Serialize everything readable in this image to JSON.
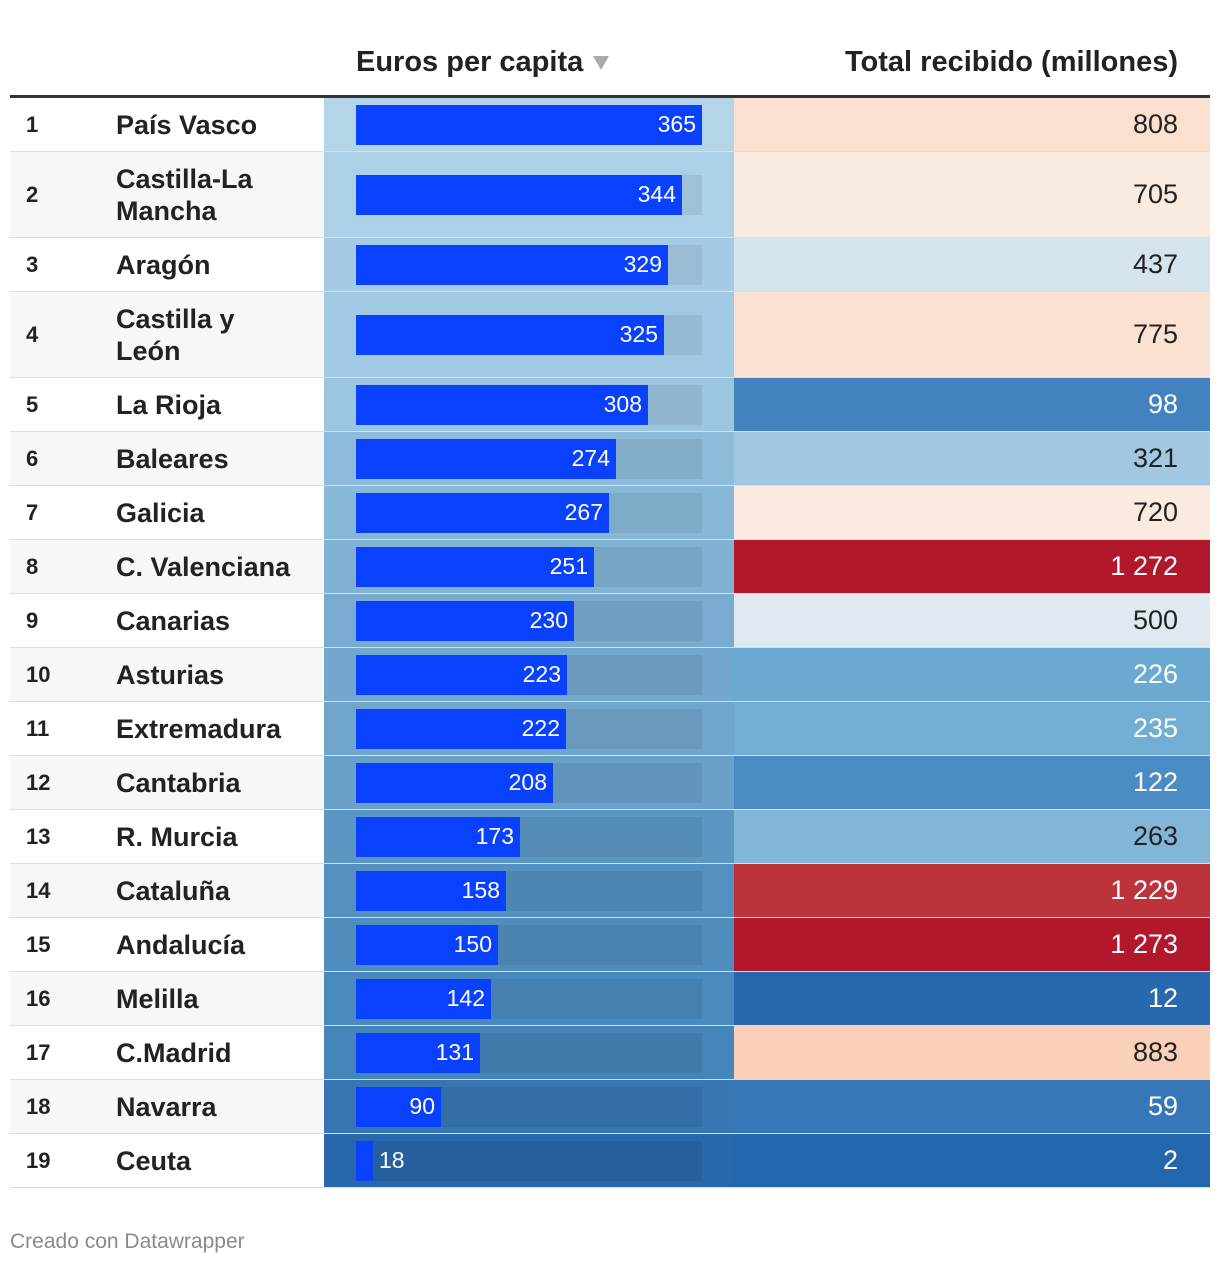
{
  "header": {
    "col_euros": "Euros per capita",
    "col_total": "Total recibido (millones)"
  },
  "footer": "Creado con Datawrapper",
  "scale_max": 365,
  "rows": [
    {
      "rank": "1",
      "name": "País Vasco",
      "euros": 365,
      "euros_label": "365",
      "total": 808,
      "total_label": "808",
      "euros_bg": "#b4d4e8",
      "total_bg": "#fbe0cf",
      "total_color": "#222222"
    },
    {
      "rank": "2",
      "name": "Castilla-La Mancha",
      "euros": 344,
      "euros_label": "344",
      "total": 705,
      "total_label": "705",
      "euros_bg": "#acd0e6",
      "total_bg": "#f9ebdf",
      "total_color": "#222222"
    },
    {
      "rank": "3",
      "name": "Aragón",
      "euros": 329,
      "euros_label": "329",
      "total": 437,
      "total_label": "437",
      "euros_bg": "#a5cbe4",
      "total_bg": "#d3e4ef",
      "total_color": "#222222"
    },
    {
      "rank": "4",
      "name": "Castilla y León",
      "euros": 325,
      "euros_label": "325",
      "total": 775,
      "total_label": "775",
      "euros_bg": "#a2c9e3",
      "total_bg": "#fbe1d2",
      "total_color": "#222222"
    },
    {
      "rank": "5",
      "name": "La Rioja",
      "euros": 308,
      "euros_label": "308",
      "total": 98,
      "total_label": "98",
      "euros_bg": "#9cc5e0",
      "total_bg": "#4283bf",
      "total_color": "#ffffff"
    },
    {
      "rank": "6",
      "name": "Baleares",
      "euros": 274,
      "euros_label": "274",
      "total": 321,
      "total_label": "321",
      "euros_bg": "#8dbbd9",
      "total_bg": "#a1c8e0",
      "total_color": "#222222"
    },
    {
      "rank": "7",
      "name": "Galicia",
      "euros": 267,
      "euros_label": "267",
      "total": 720,
      "total_label": "720",
      "euros_bg": "#88b8d7",
      "total_bg": "#fbeadf",
      "total_color": "#222222"
    },
    {
      "rank": "8",
      "name": "C. Valenciana",
      "euros": 251,
      "euros_label": "251",
      "total": 1272,
      "total_label": "1 272",
      "euros_bg": "#82b2d3",
      "total_bg": "#b2182b",
      "total_color": "#ffffff"
    },
    {
      "rank": "9",
      "name": "Canarias",
      "euros": 230,
      "euros_label": "230",
      "total": 500,
      "total_label": "500",
      "euros_bg": "#78abcf",
      "total_bg": "#dfe9ef",
      "total_color": "#222222"
    },
    {
      "rank": "10",
      "name": "Asturias",
      "euros": 223,
      "euros_label": "223",
      "total": 226,
      "total_label": "226",
      "euros_bg": "#73a7cd",
      "total_bg": "#6aa9d0",
      "total_color": "#ffffff"
    },
    {
      "rank": "11",
      "name": "Extremadura",
      "euros": 222,
      "euros_label": "222",
      "total": 235,
      "total_label": "235",
      "euros_bg": "#71a6cc",
      "total_bg": "#72aed3",
      "total_color": "#ffffff"
    },
    {
      "rank": "12",
      "name": "Cantabria",
      "euros": 208,
      "euros_label": "208",
      "total": 122,
      "total_label": "122",
      "euros_bg": "#6aa1c9",
      "total_bg": "#4b8cc4",
      "total_color": "#ffffff"
    },
    {
      "rank": "13",
      "name": "R. Murcia",
      "euros": 173,
      "euros_label": "173",
      "total": 263,
      "total_label": "263",
      "euros_bg": "#5c97c3",
      "total_bg": "#82b6d8",
      "total_color": "#222222"
    },
    {
      "rank": "14",
      "name": "Cataluña",
      "euros": 158,
      "euros_label": "158",
      "total": 1229,
      "total_label": "1 229",
      "euros_bg": "#5491c0",
      "total_bg": "#bd333c",
      "total_color": "#ffffff"
    },
    {
      "rank": "15",
      "name": "Andalucía",
      "euros": 150,
      "euros_label": "150",
      "total": 1273,
      "total_label": "1 273",
      "euros_bg": "#4f8dbe",
      "total_bg": "#b2182b",
      "total_color": "#ffffff"
    },
    {
      "rank": "16",
      "name": "Melilla",
      "euros": 142,
      "euros_label": "142",
      "total": 12,
      "total_label": "12",
      "euros_bg": "#4b8abc",
      "total_bg": "#2768af",
      "total_color": "#ffffff"
    },
    {
      "rank": "17",
      "name": "C.Madrid",
      "euros": 131,
      "euros_label": "131",
      "total": 883,
      "total_label": "883",
      "euros_bg": "#4685b9",
      "total_bg": "#fbd0bb",
      "total_color": "#222222"
    },
    {
      "rank": "18",
      "name": "Navarra",
      "euros": 90,
      "euros_label": "90",
      "total": 59,
      "total_label": "59",
      "euros_bg": "#3776b2",
      "total_bg": "#3877b7",
      "total_color": "#ffffff"
    },
    {
      "rank": "19",
      "name": "Ceuta",
      "euros": 18,
      "euros_label": "18",
      "total": 2,
      "total_label": "2",
      "euros_bg": "#2867ab",
      "total_bg": "#2266ad",
      "total_color": "#ffffff"
    }
  ],
  "chart_data": {
    "type": "table",
    "columns": [
      "",
      "",
      "Euros per capita",
      "Total recibido (millones)"
    ],
    "categories": [
      "País Vasco",
      "Castilla-La Mancha",
      "Aragón",
      "Castilla y León",
      "La Rioja",
      "Baleares",
      "Galicia",
      "C. Valenciana",
      "Canarias",
      "Asturias",
      "Extremadura",
      "Cantabria",
      "R. Murcia",
      "Cataluña",
      "Andalucía",
      "Melilla",
      "C.Madrid",
      "Navarra",
      "Ceuta"
    ],
    "series": [
      {
        "name": "Euros per capita",
        "values": [
          365,
          344,
          329,
          325,
          308,
          274,
          267,
          251,
          230,
          223,
          222,
          208,
          173,
          158,
          150,
          142,
          131,
          90,
          18
        ]
      },
      {
        "name": "Total recibido (millones)",
        "values": [
          808,
          705,
          437,
          775,
          98,
          321,
          720,
          1272,
          500,
          226,
          235,
          122,
          263,
          1229,
          1273,
          12,
          883,
          59,
          2
        ]
      }
    ],
    "sorted_by": "Euros per capita",
    "sort_order": "descending"
  }
}
